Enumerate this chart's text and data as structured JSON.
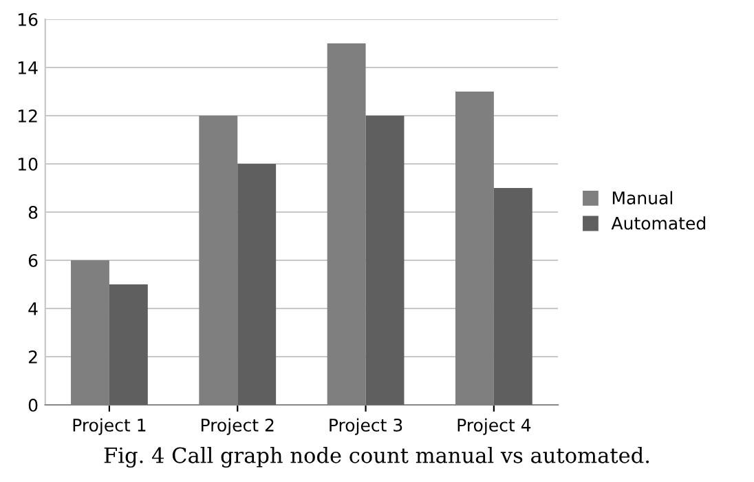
{
  "chart_data": {
    "type": "bar",
    "categories": [
      "Project 1",
      "Project 2",
      "Project 3",
      "Project 4"
    ],
    "series": [
      {
        "name": "Manual",
        "color": "#7f7f7f",
        "values": [
          6,
          12,
          15,
          13
        ]
      },
      {
        "name": "Automated",
        "color": "#5f5f5f",
        "values": [
          5,
          10,
          12,
          9
        ]
      }
    ],
    "ylim": [
      0,
      16
    ],
    "yticks": [
      0,
      2,
      4,
      6,
      8,
      10,
      12,
      14,
      16
    ],
    "grid": "y",
    "legend": "right",
    "annotations": [
      "Fig. 4 Call graph node count manual vs automated."
    ]
  }
}
